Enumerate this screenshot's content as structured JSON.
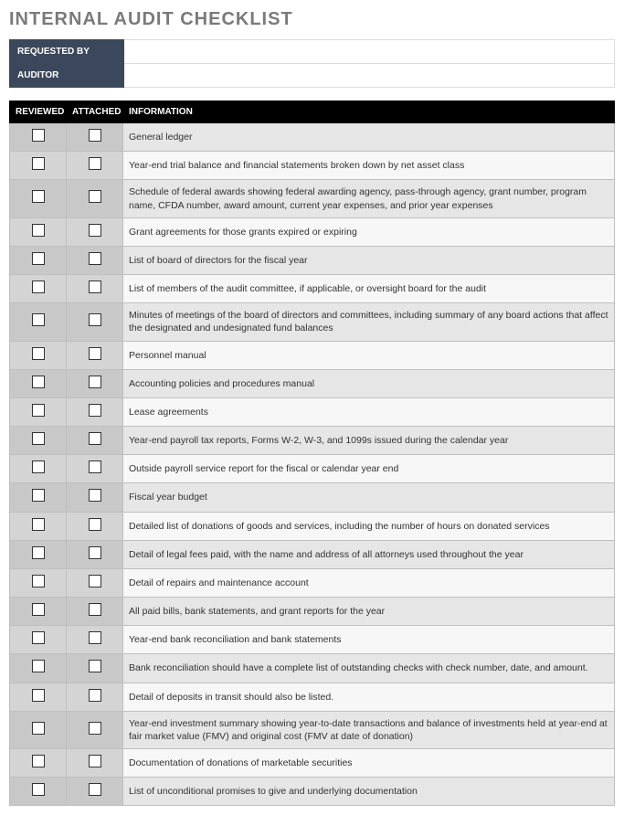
{
  "title": "INTERNAL AUDIT CHECKLIST",
  "meta": {
    "requested_by_label": "REQUESTED BY",
    "requested_by_value": "",
    "auditor_label": "AUDITOR",
    "auditor_value": ""
  },
  "columns": {
    "reviewed": "REVIEWED",
    "attached": "ATTACHED",
    "information": "INFORMATION"
  },
  "rows": [
    {
      "info": "General ledger"
    },
    {
      "info": "Year-end trial balance and financial statements broken down by net asset class"
    },
    {
      "info": "Schedule of federal awards showing federal awarding agency, pass-through agency, grant number, program name, CFDA number, award amount, current year expenses, and prior year expenses"
    },
    {
      "info": "Grant agreements for those grants expired or expiring"
    },
    {
      "info": "List of board of directors for the fiscal year"
    },
    {
      "info": "List of members of the audit committee, if applicable, or oversight board for the audit"
    },
    {
      "info": "Minutes of meetings of the board of directors and committees, including summary of any board actions that affect the designated and undesignated fund balances"
    },
    {
      "info": "Personnel manual"
    },
    {
      "info": "Accounting policies and procedures manual"
    },
    {
      "info": "Lease agreements"
    },
    {
      "info": "Year-end payroll tax reports, Forms W-2, W-3, and 1099s issued during the calendar year"
    },
    {
      "info": "Outside payroll service report for the fiscal or calendar year end"
    },
    {
      "info": "Fiscal year budget"
    },
    {
      "info": "Detailed list of donations of goods and services, including the number of hours on donated services"
    },
    {
      "info": "Detail of legal fees paid, with the name and address of all attorneys used throughout the year"
    },
    {
      "info": "Detail of repairs and maintenance account"
    },
    {
      "info": "All paid bills, bank statements, and grant reports for the year"
    },
    {
      "info": "Year-end bank reconciliation and bank statements"
    },
    {
      "info": "Bank reconciliation should have a complete list of outstanding checks with check number, date, and amount."
    },
    {
      "info": "Detail of deposits in transit should also be listed."
    },
    {
      "info": "Year-end investment summary showing year-to-date transactions and balance of investments held at year-end at fair market value (FMV) and original cost (FMV at date of donation)"
    },
    {
      "info": "Documentation of donations of marketable securities"
    },
    {
      "info": "List of unconditional promises to give and underlying documentation"
    }
  ],
  "colors": {
    "header_bg": "#3b475a",
    "row_header_bg": "#000000",
    "cb_cell_bg": "#d4d4d4",
    "even_bg": "#e6e6e6",
    "odd_bg": "#f7f7f7"
  }
}
